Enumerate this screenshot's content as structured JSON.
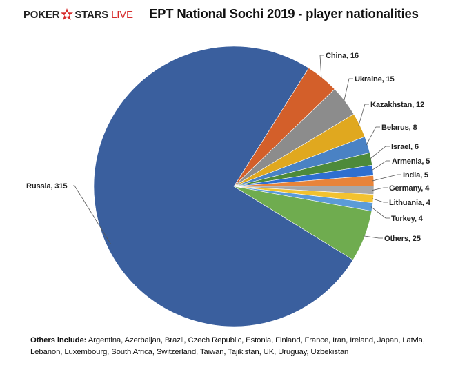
{
  "brand": {
    "poker": "POKER",
    "stars": "STARS",
    "live": "LIVE"
  },
  "title": "EPT National Sochi 2019  - player nationalities",
  "note": {
    "prefix": "Others include:",
    "text": "Argentina, Azerbaijan, Brazil, Czech Republic, Estonia, Finland,  France, Iran, Ireland, Japan, Latvia, Lebanon, Luxembourg, South Africa, Switzerland, Taiwan, Tajikistan, UK, Uruguay, Uzbekistan"
  },
  "colors": {
    "Russia": "#3a5f9e",
    "China": "#d35f2a",
    "Ukraine": "#8c8c8c",
    "Kazakhstan": "#e0a81f",
    "Belarus": "#4a82c4",
    "Israel": "#4d8a3a",
    "Armenia": "#2f6fd0",
    "India": "#e8843a",
    "Germany": "#a8a8a8",
    "Lithuania": "#f2c230",
    "Turkey": "#5b9bd8",
    "Others": "#6fac4f",
    "brand_red": "#d62b2b"
  },
  "chart_data": {
    "type": "pie",
    "title": "EPT National Sochi 2019  - player nationalities",
    "slices": [
      {
        "label": "China",
        "value": 16,
        "text": "China, 16"
      },
      {
        "label": "Ukraine",
        "value": 15,
        "text": "Ukraine, 15"
      },
      {
        "label": "Kazakhstan",
        "value": 12,
        "text": "Kazakhstan, 12"
      },
      {
        "label": "Belarus",
        "value": 8,
        "text": "Belarus, 8"
      },
      {
        "label": "Israel",
        "value": 6,
        "text": "Israel, 6"
      },
      {
        "label": "Armenia",
        "value": 5,
        "text": "Armenia, 5"
      },
      {
        "label": "India",
        "value": 5,
        "text": "India, 5"
      },
      {
        "label": "Germany",
        "value": 4,
        "text": "Germany, 4"
      },
      {
        "label": "Lithuania",
        "value": 4,
        "text": "Lithuania, 4"
      },
      {
        "label": "Turkey",
        "value": 4,
        "text": "Turkey, 4"
      },
      {
        "label": "Others",
        "value": 25,
        "text": "Others, 25"
      },
      {
        "label": "Russia",
        "value": 315,
        "text": "Russia, 315"
      }
    ],
    "legend": "none"
  }
}
